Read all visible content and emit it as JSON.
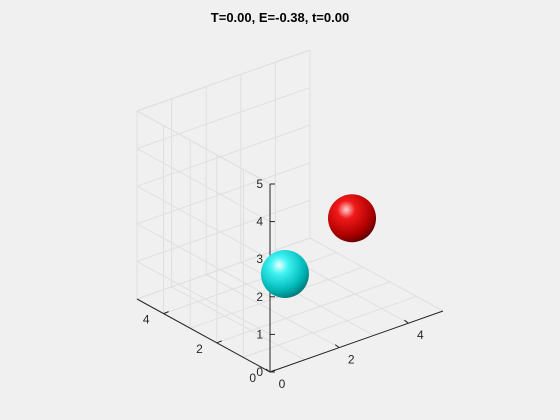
{
  "window": {
    "background": "#f0f0f0"
  },
  "chart_data": {
    "type": "scatter",
    "title": "T=0.00, E=-0.38, t=0.00",
    "xlabel": "",
    "ylabel": "",
    "zlabel": "",
    "xlim": [
      0,
      5
    ],
    "ylim": [
      0,
      5
    ],
    "zlim": [
      0,
      5
    ],
    "xticks": [
      "0",
      "2",
      "4"
    ],
    "yticks": [
      "0",
      "2",
      "4"
    ],
    "zticks": [
      "0",
      "1",
      "2",
      "3",
      "4",
      "5"
    ],
    "grid": true,
    "view": "3d",
    "series": [
      {
        "marker": "sphere",
        "color": "#00e6e6",
        "points": [
          {
            "x": 2.2,
            "y": 2.3,
            "z": 1.0
          }
        ]
      },
      {
        "marker": "sphere",
        "color": "#e60000",
        "points": [
          {
            "x": 3.6,
            "y": 1.6,
            "z": 2.3
          }
        ]
      }
    ]
  }
}
